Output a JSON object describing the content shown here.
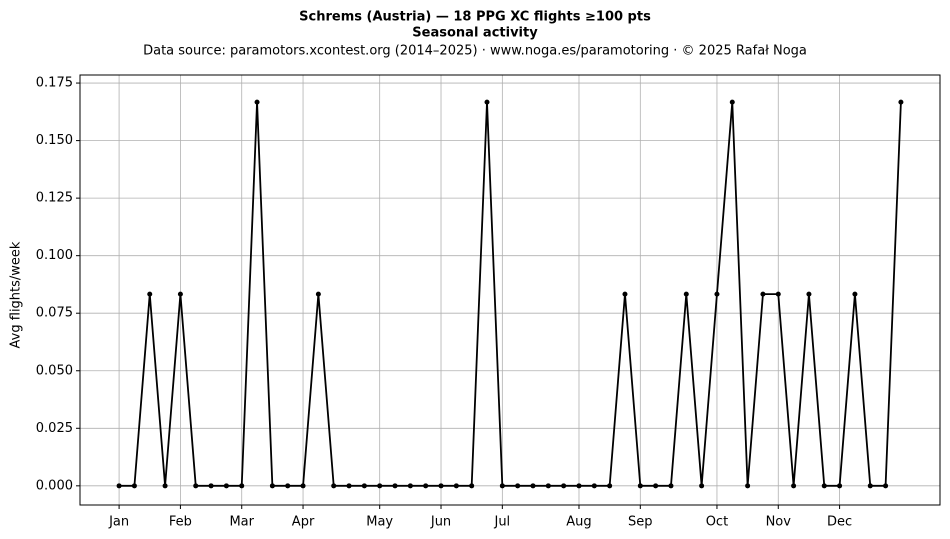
{
  "chart_data": {
    "type": "line",
    "title": "Schrems (Austria)  —  18 PPG XC flights ≥100 pts",
    "subtitle": "Seasonal activity",
    "source": "Data source: paramotors.xcontest.org (2014–2025)  ·  www.noga.es/paramotoring  ·  © 2025 Rafał Noga",
    "y_label": "Avg flights/week",
    "x": [
      1,
      2,
      3,
      4,
      5,
      6,
      7,
      8,
      9,
      10,
      11,
      12,
      13,
      14,
      15,
      16,
      17,
      18,
      19,
      20,
      21,
      22,
      23,
      24,
      25,
      26,
      27,
      28,
      29,
      30,
      31,
      32,
      33,
      34,
      35,
      36,
      37,
      38,
      39,
      40,
      41,
      42,
      43,
      44,
      45,
      46,
      47,
      48,
      49,
      50,
      51,
      52
    ],
    "series": [
      {
        "name": "Avg flights/week",
        "color": "#000000",
        "values": [
          0,
          0,
          0.0833,
          0,
          0.0833,
          0,
          0,
          0,
          0,
          0.1667,
          0,
          0,
          0,
          0.0833,
          0,
          0,
          0,
          0,
          0,
          0,
          0,
          0,
          0,
          0,
          0.1667,
          0,
          0,
          0,
          0,
          0,
          0,
          0,
          0,
          0.0833,
          0,
          0,
          0,
          0.0833,
          0,
          0.0833,
          0.1667,
          0,
          0.0833,
          0.0833,
          0,
          0.0833,
          0,
          0,
          0.0833,
          0,
          0,
          0.1667
        ]
      }
    ],
    "xlim": [
      -1.55,
      54.55
    ],
    "xticks": [
      {
        "value": 1,
        "label": "Jan"
      },
      {
        "value": 5,
        "label": "Feb"
      },
      {
        "value": 9,
        "label": "Mar"
      },
      {
        "value": 13,
        "label": "Apr"
      },
      {
        "value": 18,
        "label": "May"
      },
      {
        "value": 22,
        "label": "Jun"
      },
      {
        "value": 26,
        "label": "Jul"
      },
      {
        "value": 31,
        "label": "Aug"
      },
      {
        "value": 35,
        "label": "Sep"
      },
      {
        "value": 40,
        "label": "Oct"
      },
      {
        "value": 44,
        "label": "Nov"
      },
      {
        "value": 48,
        "label": "Dec"
      }
    ],
    "ylim": [
      -0.00833,
      0.1785
    ],
    "yticks": [
      {
        "value": 0,
        "label": "0.000"
      },
      {
        "value": 0.025,
        "label": "0.025"
      },
      {
        "value": 0.05,
        "label": "0.050"
      },
      {
        "value": 0.075,
        "label": "0.075"
      },
      {
        "value": 0.1,
        "label": "0.100"
      },
      {
        "value": 0.125,
        "label": "0.125"
      },
      {
        "value": 0.15,
        "label": "0.150"
      },
      {
        "value": 0.175,
        "label": "0.175"
      }
    ],
    "grid": true
  }
}
